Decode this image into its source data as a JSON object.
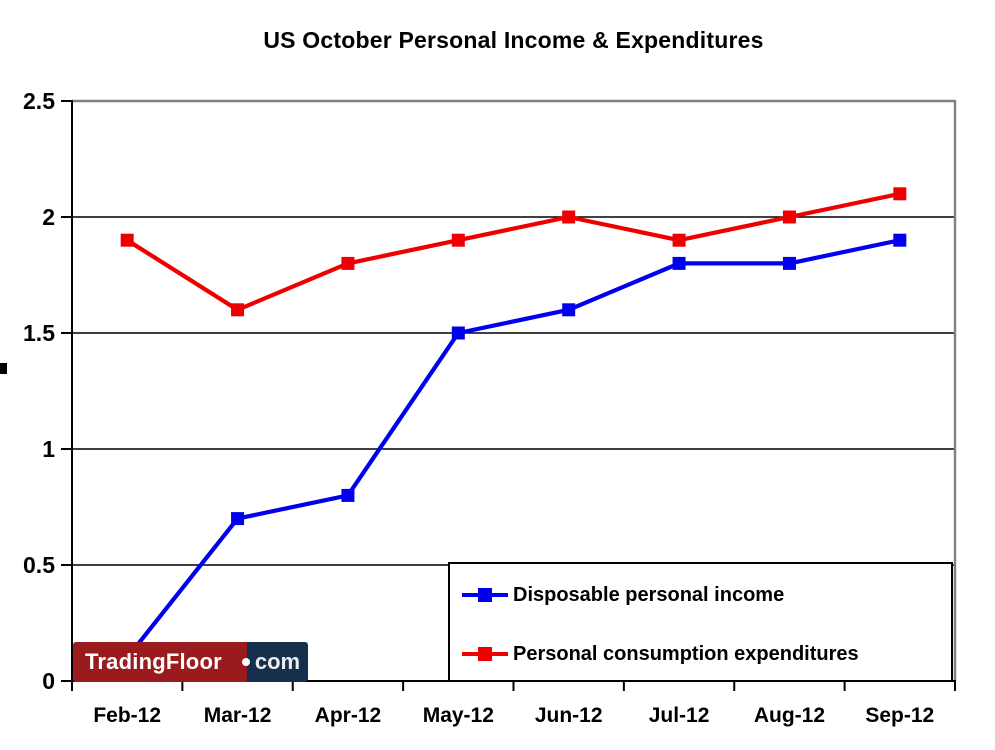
{
  "title": "US October Personal Income & Expenditures",
  "chart_data": {
    "type": "line",
    "title": "US October Personal Income & Expenditures",
    "categories": [
      "Feb-12",
      "Mar-12",
      "Apr-12",
      "May-12",
      "Jun-12",
      "Jul-12",
      "Aug-12",
      "Sep-12"
    ],
    "series": [
      {
        "name": "Disposable personal income",
        "color": "#0000EE",
        "marker": "square",
        "values": [
          0.1,
          0.7,
          0.8,
          1.5,
          1.6,
          1.8,
          1.8,
          1.9
        ]
      },
      {
        "name": "Personal consumption expenditures",
        "color": "#EE0000",
        "marker": "square",
        "values": [
          1.9,
          1.6,
          1.8,
          1.9,
          2.0,
          1.9,
          2.0,
          2.1
        ]
      }
    ],
    "xlabel": "",
    "ylabel": "",
    "ylim": [
      0,
      2.5
    ],
    "ytick_interval": 0.5,
    "ytick_labels": [
      "0",
      "0.5",
      "1",
      "1.5",
      "2",
      "2.5"
    ],
    "grid": true,
    "gridline_color": "#000000",
    "plot_border_color": "#808080",
    "legend_position": "inside-bottom-right"
  },
  "logo": {
    "part1": "TradingFloor",
    "separator_icon": "dot",
    "part2": "com",
    "red_box_color": "#9A1B1E",
    "navy_box_color": "#14304D",
    "com_text_color": "#EDEDED"
  }
}
